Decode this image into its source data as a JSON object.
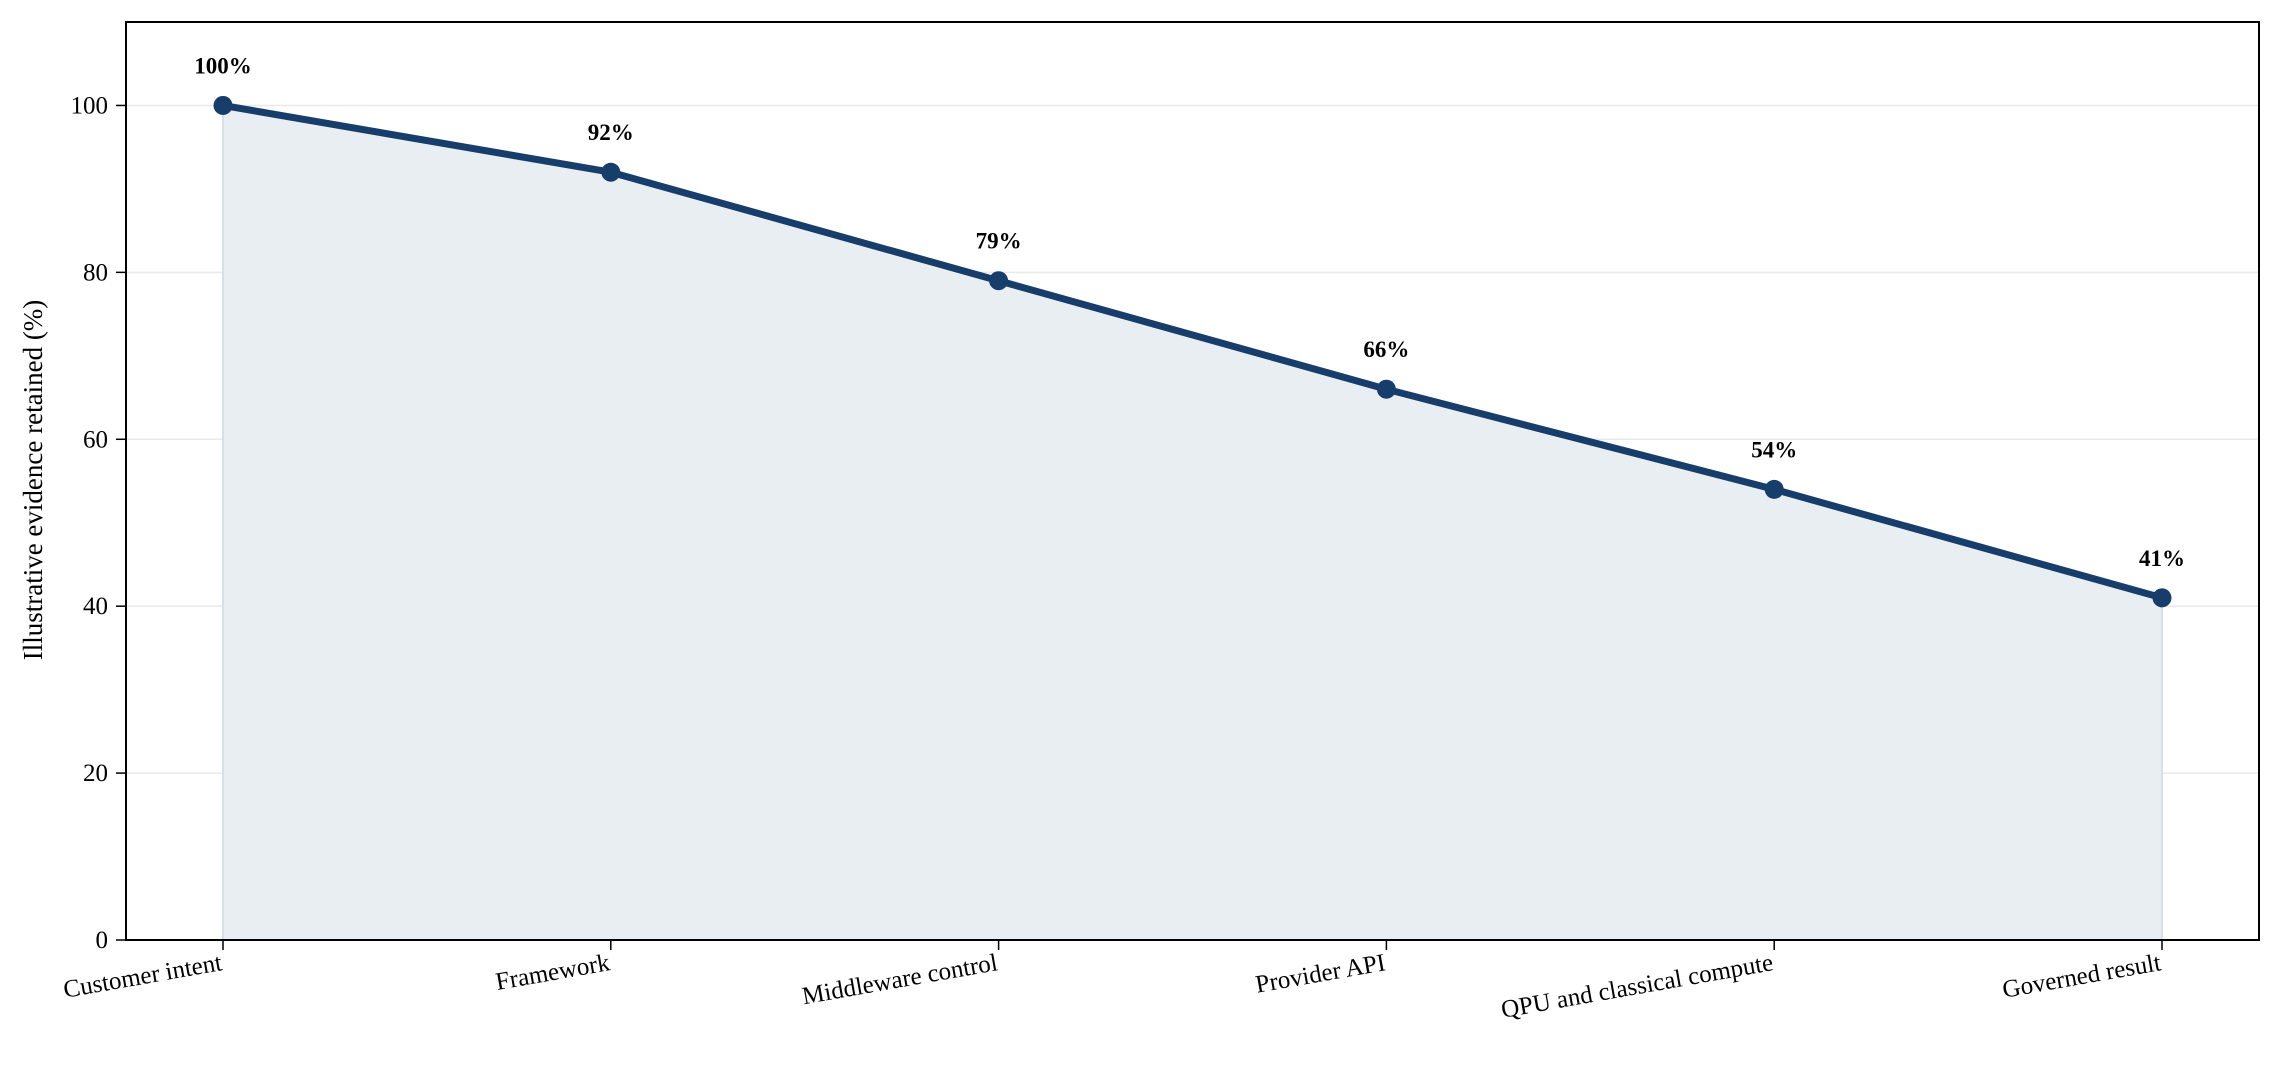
{
  "chart_data": {
    "type": "area",
    "title": "",
    "xlabel": "",
    "ylabel": "Illustrative evidence retained (%)",
    "categories": [
      "Customer intent",
      "Framework",
      "Middleware control",
      "Provider API",
      "QPU and classical compute",
      "Governed result"
    ],
    "values": [
      100,
      92,
      79,
      66,
      54,
      41
    ],
    "data_labels": [
      "100%",
      "92%",
      "79%",
      "66%",
      "54%",
      "41%"
    ],
    "ylim": [
      0,
      110
    ],
    "yticks": [
      0,
      20,
      40,
      60,
      80,
      100
    ],
    "grid": "horizontal",
    "legend": "none",
    "colors": {
      "line": "#173d6a",
      "fill": "#e8eef1",
      "grid": "#e9e9e9",
      "axis": "#000000"
    }
  }
}
